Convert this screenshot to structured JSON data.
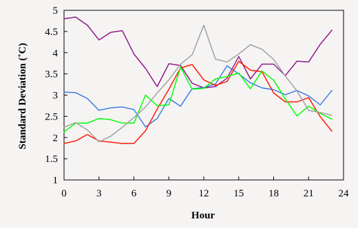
{
  "chart_data": {
    "type": "line",
    "xlabel": "Hour",
    "ylabel": "Standard Deviation (˚C)",
    "xlim": [
      0,
      24
    ],
    "ylim": [
      1,
      5
    ],
    "xticks": [
      "0",
      "3",
      "6",
      "9",
      "12",
      "15",
      "18",
      "21",
      "24"
    ],
    "yticks": [
      "1",
      "1.5",
      "2",
      "2.5",
      "3",
      "3.5",
      "4",
      "4.5",
      "5"
    ],
    "grid": false,
    "x": [
      0,
      1,
      2,
      3,
      4,
      5,
      6,
      7,
      8,
      9,
      10,
      11,
      12,
      13,
      14,
      15,
      16,
      17,
      18,
      19,
      20,
      21,
      22,
      23
    ],
    "series": [
      {
        "color": "#8b1a8b",
        "values": [
          4.8,
          4.84,
          4.65,
          4.3,
          4.48,
          4.52,
          3.97,
          3.63,
          3.2,
          3.74,
          3.7,
          3.28,
          3.17,
          3.2,
          3.4,
          3.91,
          3.38,
          3.73,
          3.73,
          3.46,
          3.8,
          3.78,
          4.2,
          4.53
        ]
      },
      {
        "color": "#3a7de0",
        "values": [
          3.07,
          3.06,
          2.92,
          2.64,
          2.7,
          2.72,
          2.66,
          2.25,
          2.45,
          2.92,
          2.74,
          3.15,
          3.18,
          3.26,
          3.69,
          3.5,
          3.29,
          3.17,
          3.13,
          3.01,
          3.11,
          2.98,
          2.77,
          3.11
        ]
      },
      {
        "color": "#ff1a00",
        "values": [
          1.86,
          1.92,
          2.07,
          1.92,
          1.89,
          1.86,
          1.86,
          2.16,
          2.67,
          3.14,
          3.64,
          3.72,
          3.36,
          3.23,
          3.32,
          3.8,
          3.59,
          3.55,
          3.05,
          2.84,
          2.84,
          2.94,
          2.49,
          2.15
        ]
      },
      {
        "color": "#00ff00",
        "values": [
          2.13,
          2.34,
          2.34,
          2.45,
          2.42,
          2.34,
          2.34,
          3.0,
          2.75,
          2.77,
          3.66,
          3.14,
          3.16,
          3.38,
          3.44,
          3.52,
          3.15,
          3.57,
          3.35,
          2.91,
          2.51,
          2.74,
          2.57,
          2.43
        ]
      },
      {
        "color": "#a0a0a0",
        "values": [
          2.24,
          2.35,
          2.18,
          1.9,
          2.03,
          2.24,
          2.47,
          2.72,
          3.05,
          3.36,
          3.73,
          3.95,
          4.65,
          3.85,
          3.78,
          3.97,
          4.19,
          4.08,
          3.84,
          3.45,
          3.1,
          2.64,
          2.59,
          2.52
        ]
      }
    ]
  }
}
